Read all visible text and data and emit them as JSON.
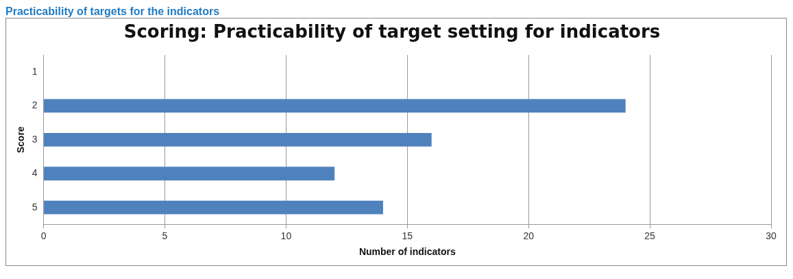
{
  "chart_data": {
    "type": "bar",
    "orientation": "horizontal",
    "title": "Scoring: Practicability of target setting for indicators",
    "xlabel": "Number of indicators",
    "ylabel": "Score",
    "annotations": [
      "Practicability of targets for the indicators"
    ],
    "categories": [
      "1",
      "2",
      "3",
      "4",
      "5"
    ],
    "values": [
      0,
      24,
      16,
      12,
      14
    ],
    "color": "#4f81bd",
    "xlim": [
      0,
      30
    ],
    "xticks": [
      0,
      5,
      10,
      15,
      20,
      25,
      30
    ],
    "grid": "x",
    "legend": false
  }
}
